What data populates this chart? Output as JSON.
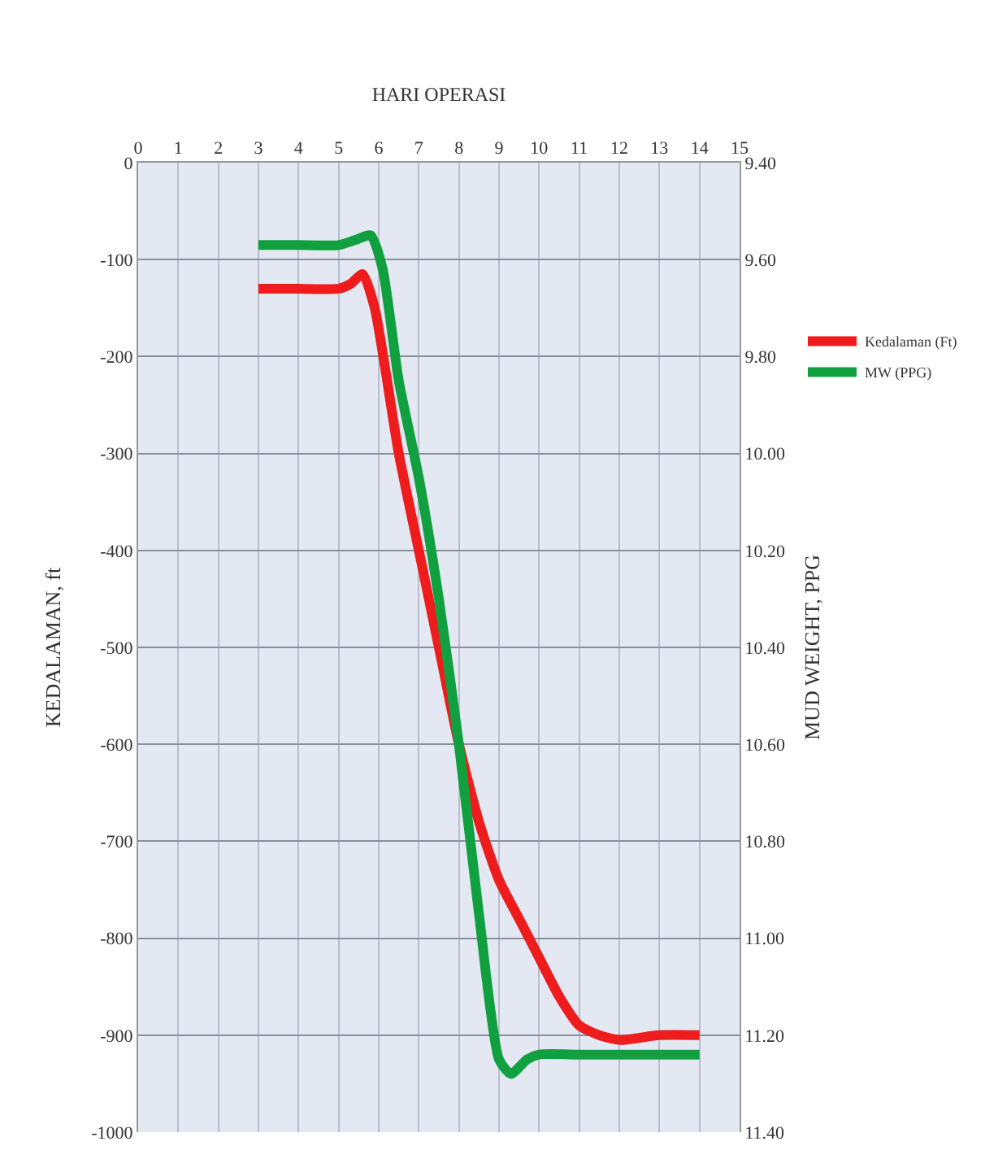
{
  "chart_data": {
    "type": "line",
    "xlabel": "HARI OPERASI",
    "ylabel": "KEDALAMAN, ft",
    "y2label": "MUD WEIGHT, PPG",
    "xlim": [
      0,
      15
    ],
    "xticks": [
      0,
      1,
      2,
      3,
      4,
      5,
      6,
      7,
      8,
      9,
      10,
      11,
      12,
      13,
      14,
      15
    ],
    "ylim": [
      -1000,
      0
    ],
    "yticks": [
      0,
      -100,
      -200,
      -300,
      -400,
      -500,
      -600,
      -700,
      -800,
      -900,
      -1000
    ],
    "y2lim": [
      11.4,
      9.4
    ],
    "y2ticks": [
      {
        "value": 9.4,
        "label": "9.40"
      },
      {
        "value": 9.6,
        "label": "9.60"
      },
      {
        "value": 9.8,
        "label": "9.80"
      },
      {
        "value": 10.0,
        "label": "10.00"
      },
      {
        "value": 10.2,
        "label": "10.20"
      },
      {
        "value": 10.4,
        "label": "10.40"
      },
      {
        "value": 10.6,
        "label": "10.60"
      },
      {
        "value": 10.8,
        "label": "10.80"
      },
      {
        "value": 11.0,
        "label": "11.00"
      },
      {
        "value": 11.2,
        "label": "11.20"
      },
      {
        "value": 11.4,
        "label": "11.40"
      }
    ],
    "grid": true,
    "legend": "right",
    "marker": "none",
    "line_style": "solid",
    "series": [
      {
        "name": "Kedalaman (Ft)",
        "color": "#ee1c1c",
        "x": [
          3,
          4,
          5,
          5.3,
          5.6,
          5.9,
          6.5,
          7,
          7.5,
          8,
          8.5,
          9,
          9.5,
          10,
          10.5,
          11,
          11.5,
          12,
          13,
          14
        ],
        "values": [
          -130,
          -130,
          -130,
          -125,
          -115,
          -150,
          -300,
          -400,
          -500,
          -600,
          -680,
          -740,
          -780,
          -820,
          -860,
          -890,
          -900,
          -905,
          -900,
          -900
        ]
      },
      {
        "name": "MW (PPG)",
        "color": "#10a040",
        "axis": "y2",
        "x": [
          3,
          4,
          5,
          5.4,
          5.8,
          6.1,
          6.5,
          7,
          7.5,
          8,
          8.5,
          9,
          9.3,
          9.7,
          10,
          11,
          12,
          13,
          14
        ],
        "values": [
          9.57,
          9.57,
          9.57,
          9.56,
          9.55,
          9.62,
          9.85,
          10.05,
          10.3,
          10.6,
          10.95,
          11.25,
          11.28,
          11.25,
          11.24,
          11.24,
          11.24,
          11.24,
          11.24
        ]
      }
    ]
  }
}
